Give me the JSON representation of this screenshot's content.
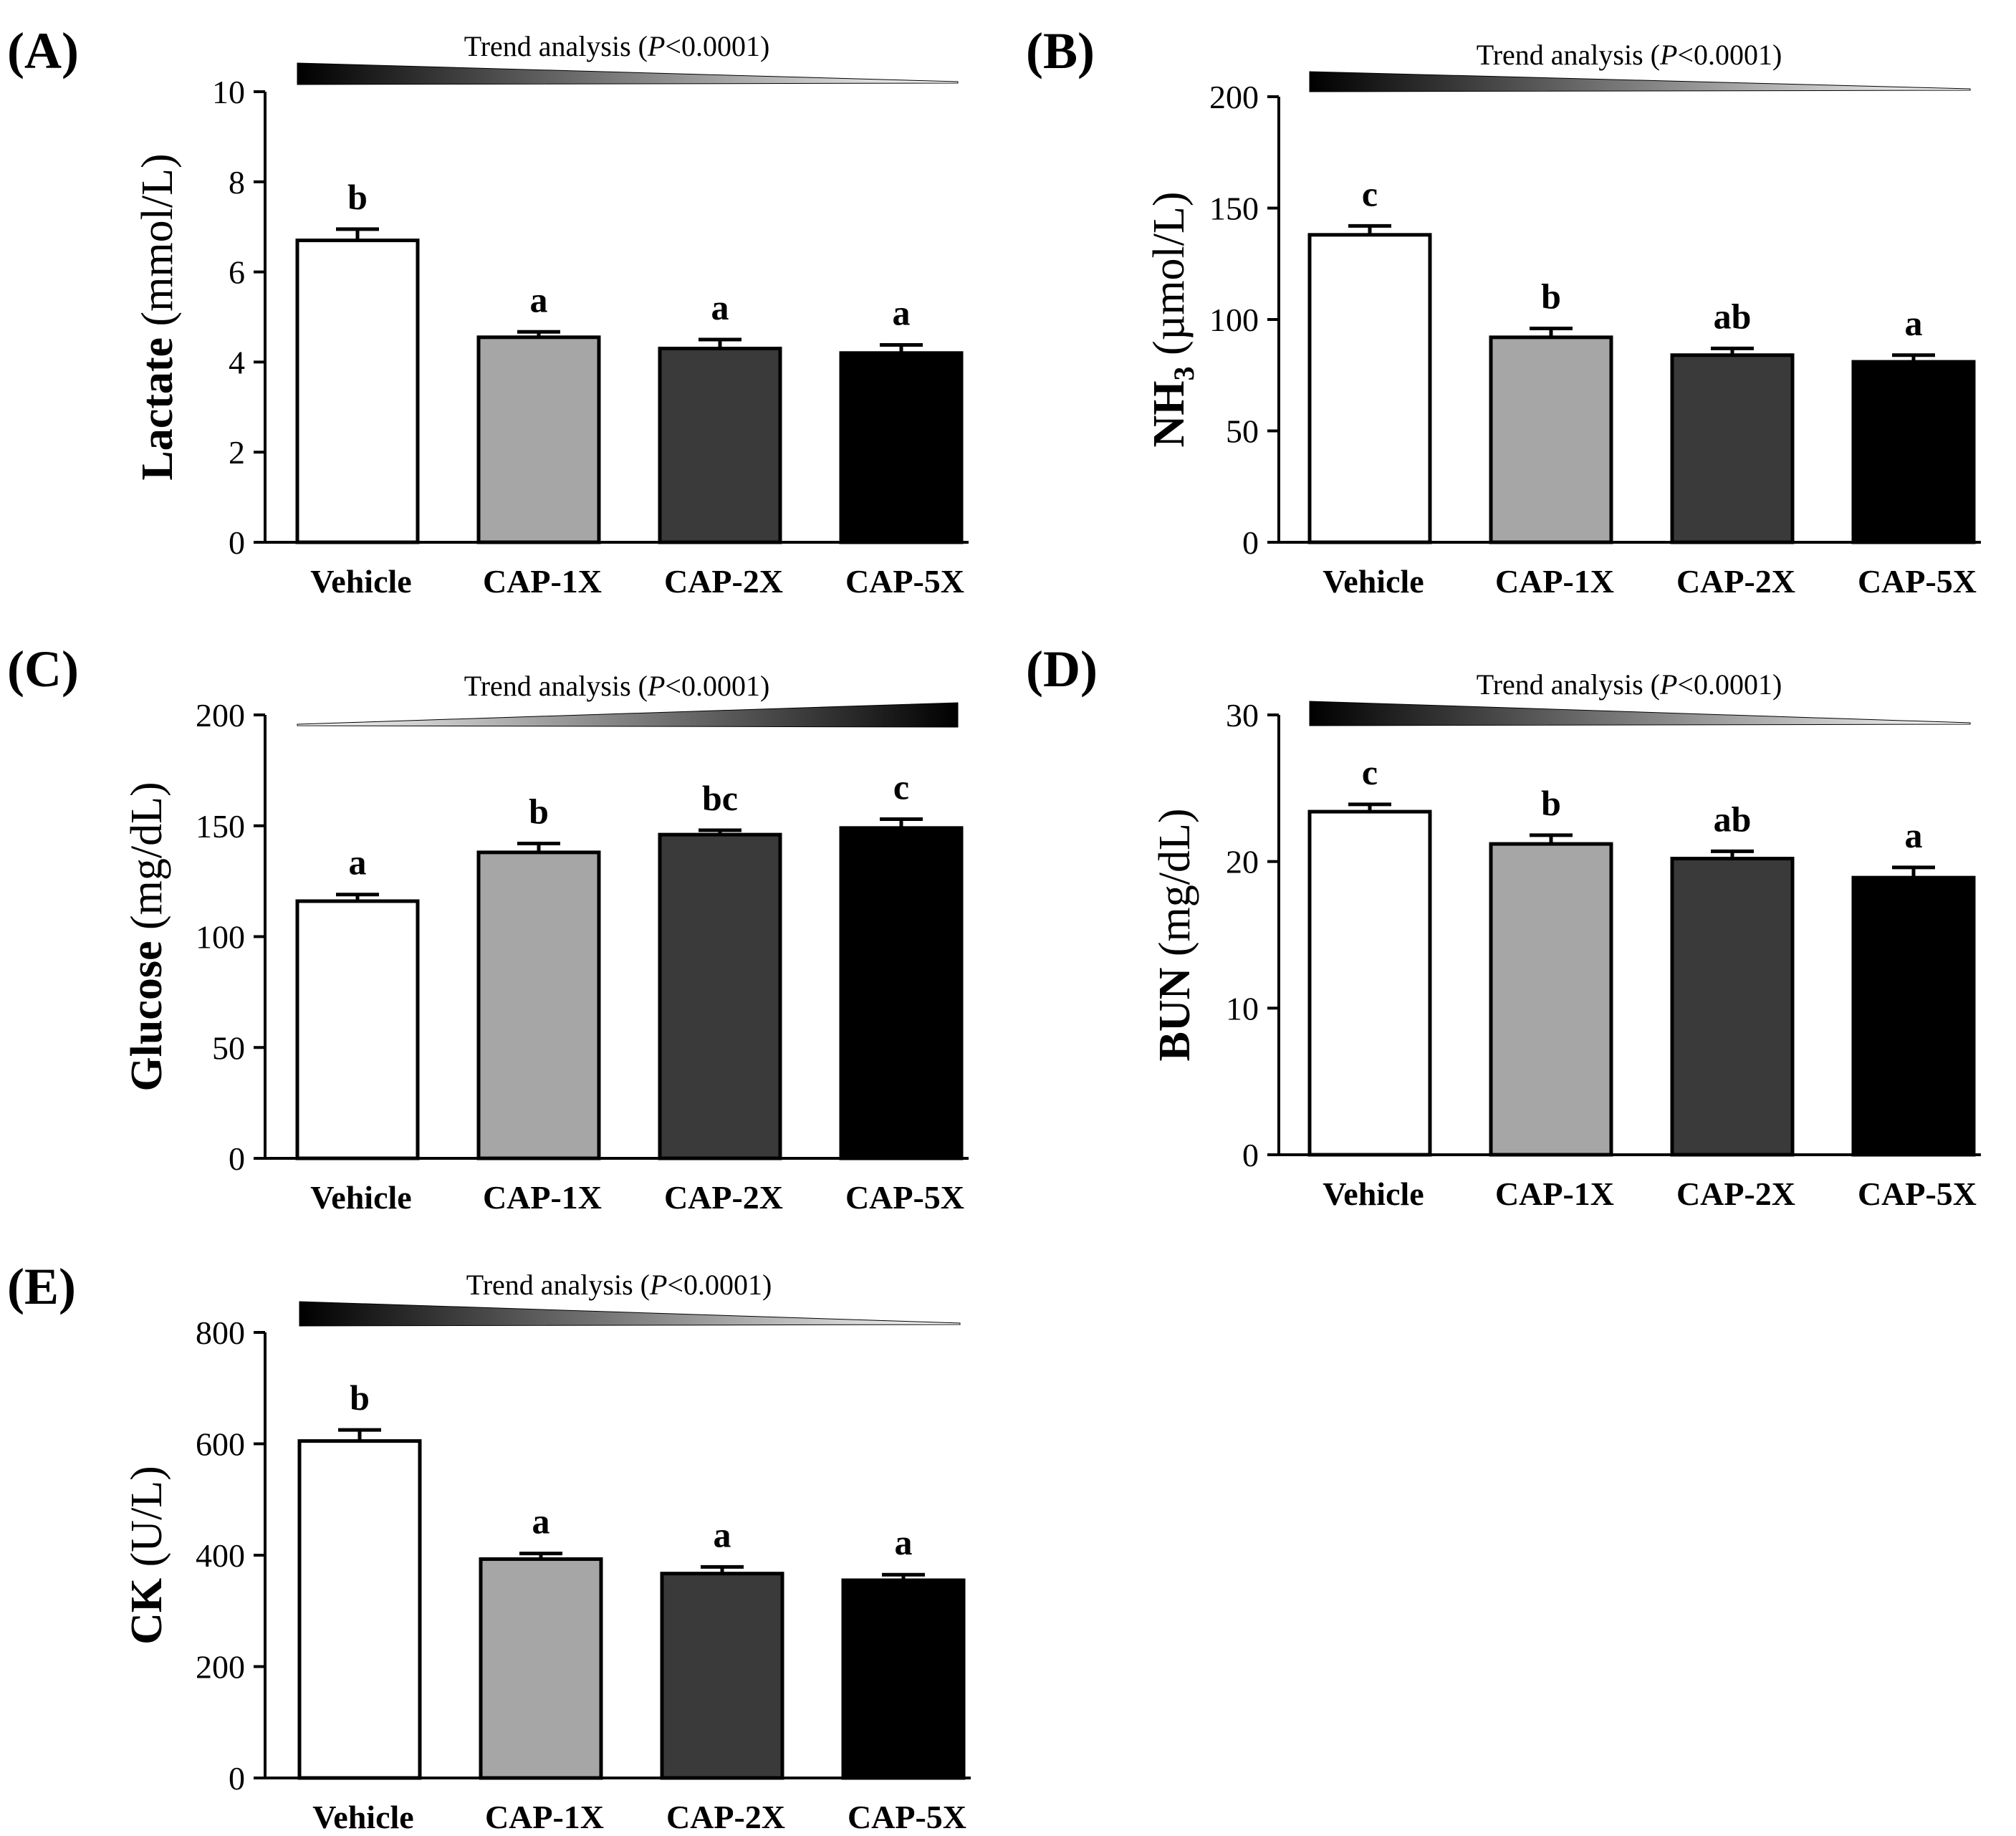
{
  "figure": {
    "categories": [
      "Vehicle",
      "CAP-1X",
      "CAP-2X",
      "CAP-5X"
    ],
    "bar_colors": [
      "#ffffff",
      "#a6a6a6",
      "#3a3a3a",
      "#000000"
    ],
    "trend_text_prefix": "Trend analysis (",
    "trend_text_p": "P",
    "trend_text_suffix": "<0.0001)"
  },
  "chart_data": [
    {
      "panel": "(A)",
      "type": "bar",
      "ylabel_bold": "Lactate",
      "ylabel_unit": "(mmol/L)",
      "ylim": [
        0,
        10
      ],
      "yticks": [
        0,
        2,
        4,
        6,
        8,
        10
      ],
      "categories": [
        "Vehicle",
        "CAP-1X",
        "CAP-2X",
        "CAP-5X"
      ],
      "values": [
        6.7,
        4.55,
        4.3,
        4.2
      ],
      "errors": [
        0.25,
        0.12,
        0.2,
        0.18
      ],
      "sig_letters": [
        "b",
        "a",
        "a",
        "a"
      ],
      "trend": "decreasing"
    },
    {
      "panel": "(B)",
      "type": "bar",
      "ylabel_bold": "NH",
      "ylabel_sub": "3",
      "ylabel_unit": "(µmol/L)",
      "ylim": [
        0,
        200
      ],
      "yticks": [
        0,
        50,
        100,
        150,
        200
      ],
      "categories": [
        "Vehicle",
        "CAP-1X",
        "CAP-2X",
        "CAP-5X"
      ],
      "values": [
        138,
        92,
        84,
        81
      ],
      "errors": [
        4,
        4,
        3,
        3
      ],
      "sig_letters": [
        "c",
        "b",
        "ab",
        "a"
      ],
      "trend": "decreasing"
    },
    {
      "panel": "(C)",
      "type": "bar",
      "ylabel_bold": "Glucose",
      "ylabel_unit": "(mg/dL)",
      "ylim": [
        0,
        200
      ],
      "yticks": [
        0,
        50,
        100,
        150,
        200
      ],
      "categories": [
        "Vehicle",
        "CAP-1X",
        "CAP-2X",
        "CAP-5X"
      ],
      "values": [
        116,
        138,
        146,
        149
      ],
      "errors": [
        3,
        4,
        2,
        4
      ],
      "sig_letters": [
        "a",
        "b",
        "bc",
        "c"
      ],
      "trend": "increasing"
    },
    {
      "panel": "(D)",
      "type": "bar",
      "ylabel_bold": "BUN",
      "ylabel_unit": "(mg/dL)",
      "ylim": [
        0,
        30
      ],
      "yticks": [
        0,
        10,
        20,
        30
      ],
      "categories": [
        "Vehicle",
        "CAP-1X",
        "CAP-2X",
        "CAP-5X"
      ],
      "values": [
        23.4,
        21.2,
        20.2,
        18.9
      ],
      "errors": [
        0.5,
        0.6,
        0.5,
        0.7
      ],
      "sig_letters": [
        "c",
        "b",
        "ab",
        "a"
      ],
      "trend": "decreasing"
    },
    {
      "panel": "(E)",
      "type": "bar",
      "ylabel_bold": "CK",
      "ylabel_unit": "(U/L)",
      "ylim": [
        0,
        800
      ],
      "yticks": [
        0,
        200,
        400,
        600,
        800
      ],
      "categories": [
        "Vehicle",
        "CAP-1X",
        "CAP-2X",
        "CAP-5X"
      ],
      "values": [
        605,
        393,
        367,
        355
      ],
      "errors": [
        20,
        10,
        12,
        10
      ],
      "sig_letters": [
        "b",
        "a",
        "a",
        "a"
      ],
      "trend": "decreasing"
    }
  ]
}
